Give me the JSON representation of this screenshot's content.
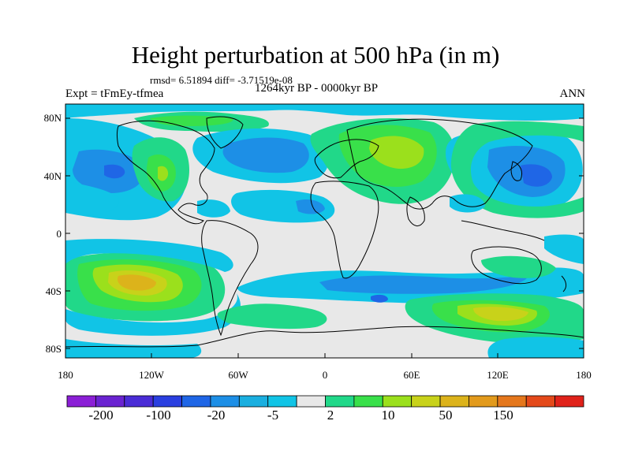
{
  "title": "Height perturbation at 500 hPa (in m)",
  "stats": "rmsd= 6.51894 diff= -3.71519e-08",
  "period": "1264kyr BP - 0000kyr BP",
  "experiment": "Expt = tFmEy-tfmea",
  "season": "ANN",
  "lat_ticks": [
    "80N",
    "40N",
    "0",
    "40S",
    "80S"
  ],
  "lon_ticks": [
    "180",
    "120W",
    "60W",
    "0",
    "60E",
    "120E",
    "180"
  ],
  "colorbar": {
    "colors": [
      "#8b1fd6",
      "#6a23d1",
      "#4a2cd6",
      "#2a3fe0",
      "#1f66e6",
      "#1d8fe6",
      "#1aafe0",
      "#11c4e6",
      "#e8e8e8",
      "#21d889",
      "#39e04a",
      "#9be01c",
      "#c8d21a",
      "#dcb31b",
      "#e29a1c",
      "#e5771c",
      "#e4491a",
      "#e0221a"
    ],
    "labels": [
      "-200",
      "-100",
      "-20",
      "-5",
      "2",
      "10",
      "50",
      "150"
    ]
  },
  "palette": {
    "neutral": "#e8e8e8",
    "c1": "#11c4e6",
    "c2": "#1d8fe6",
    "c3": "#1f66e6",
    "w1": "#21d889",
    "w2": "#39e04a",
    "w3": "#9be01c",
    "w4": "#c8d21a",
    "w5": "#dcb31b"
  }
}
